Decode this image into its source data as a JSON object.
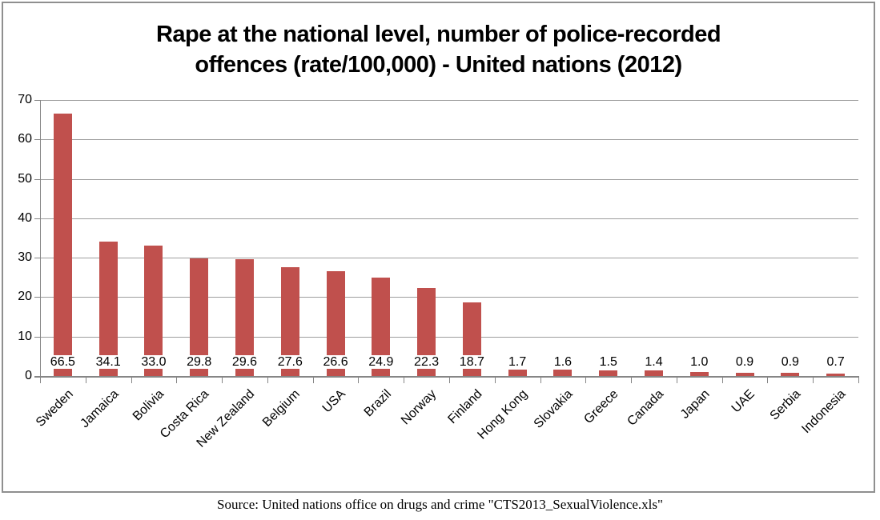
{
  "chart_data": {
    "type": "bar",
    "title": "Rape at the national level, number of police-recorded offences (rate/100,000) - United nations (2012)",
    "title_lines": [
      "Rape at the national level, number of police-recorded",
      "offences (rate/100,000) - United nations (2012)"
    ],
    "categories": [
      "Sweden",
      "Jamaica",
      "Bolivia",
      "Costa Rica",
      "New Zealand",
      "Belgium",
      "USA",
      "Brazil",
      "Norway",
      "Finland",
      "Hong Kong",
      "Slovakia",
      "Greece",
      "Canada",
      "Japan",
      "UAE",
      "Serbia",
      "Indonesia"
    ],
    "values": [
      66.5,
      34.1,
      33.0,
      29.8,
      29.6,
      27.6,
      26.6,
      24.9,
      22.3,
      18.7,
      1.7,
      1.6,
      1.5,
      1.4,
      1.0,
      0.9,
      0.9,
      0.7
    ],
    "data_labels": [
      "66.5",
      "34.1",
      "33.0",
      "29.8",
      "29.6",
      "27.6",
      "26.6",
      "24.9",
      "22.3",
      "18.7",
      "1.7",
      "1.6",
      "1.5",
      "1.4",
      "1.0",
      "0.9",
      "0.9",
      "0.7"
    ],
    "xlabel": "",
    "ylabel": "",
    "y_ticks": [
      0,
      10,
      20,
      30,
      40,
      50,
      60,
      70
    ],
    "ylim": [
      0,
      70
    ],
    "grid": true,
    "legend": "none",
    "bar_color": "#c0504d",
    "gridline_color": "#9e9e9e",
    "axis_color": "#868686",
    "label_background": "#ffffff"
  },
  "footer": {
    "source": "Source: United nations office on drugs and crime \"CTS2013_SexualViolence.xls\""
  }
}
